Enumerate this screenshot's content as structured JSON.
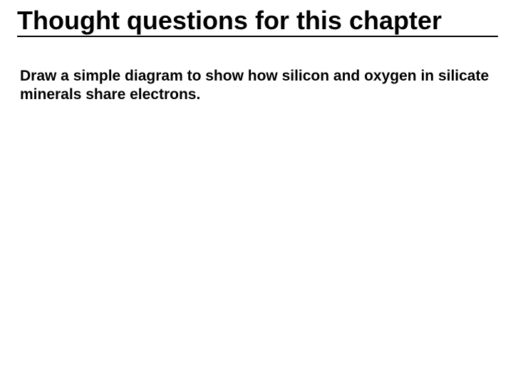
{
  "slide": {
    "title": "Thought questions for this chapter",
    "title_fontsize": 36,
    "title_color": "#000000",
    "title_underline_width": 675,
    "title_underline_color": "#000000",
    "body": "Draw a simple diagram to show how silicon and oxygen in silicate minerals share electrons.",
    "body_fontsize": 21,
    "body_color": "#000000",
    "background_color": "#ffffff"
  }
}
